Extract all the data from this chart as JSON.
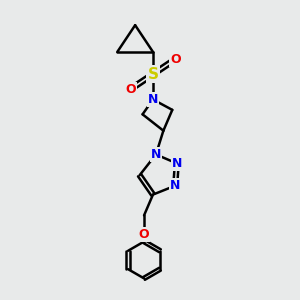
{
  "bg_color": "#e8eaea",
  "line_color": "#000000",
  "bond_width": 1.8,
  "atom_colors": {
    "N": "#0000ee",
    "S": "#cccc00",
    "O": "#ee0000",
    "C": "#000000"
  },
  "font_size": 9,
  "xlim": [
    0,
    10
  ],
  "ylim": [
    0,
    10
  ]
}
